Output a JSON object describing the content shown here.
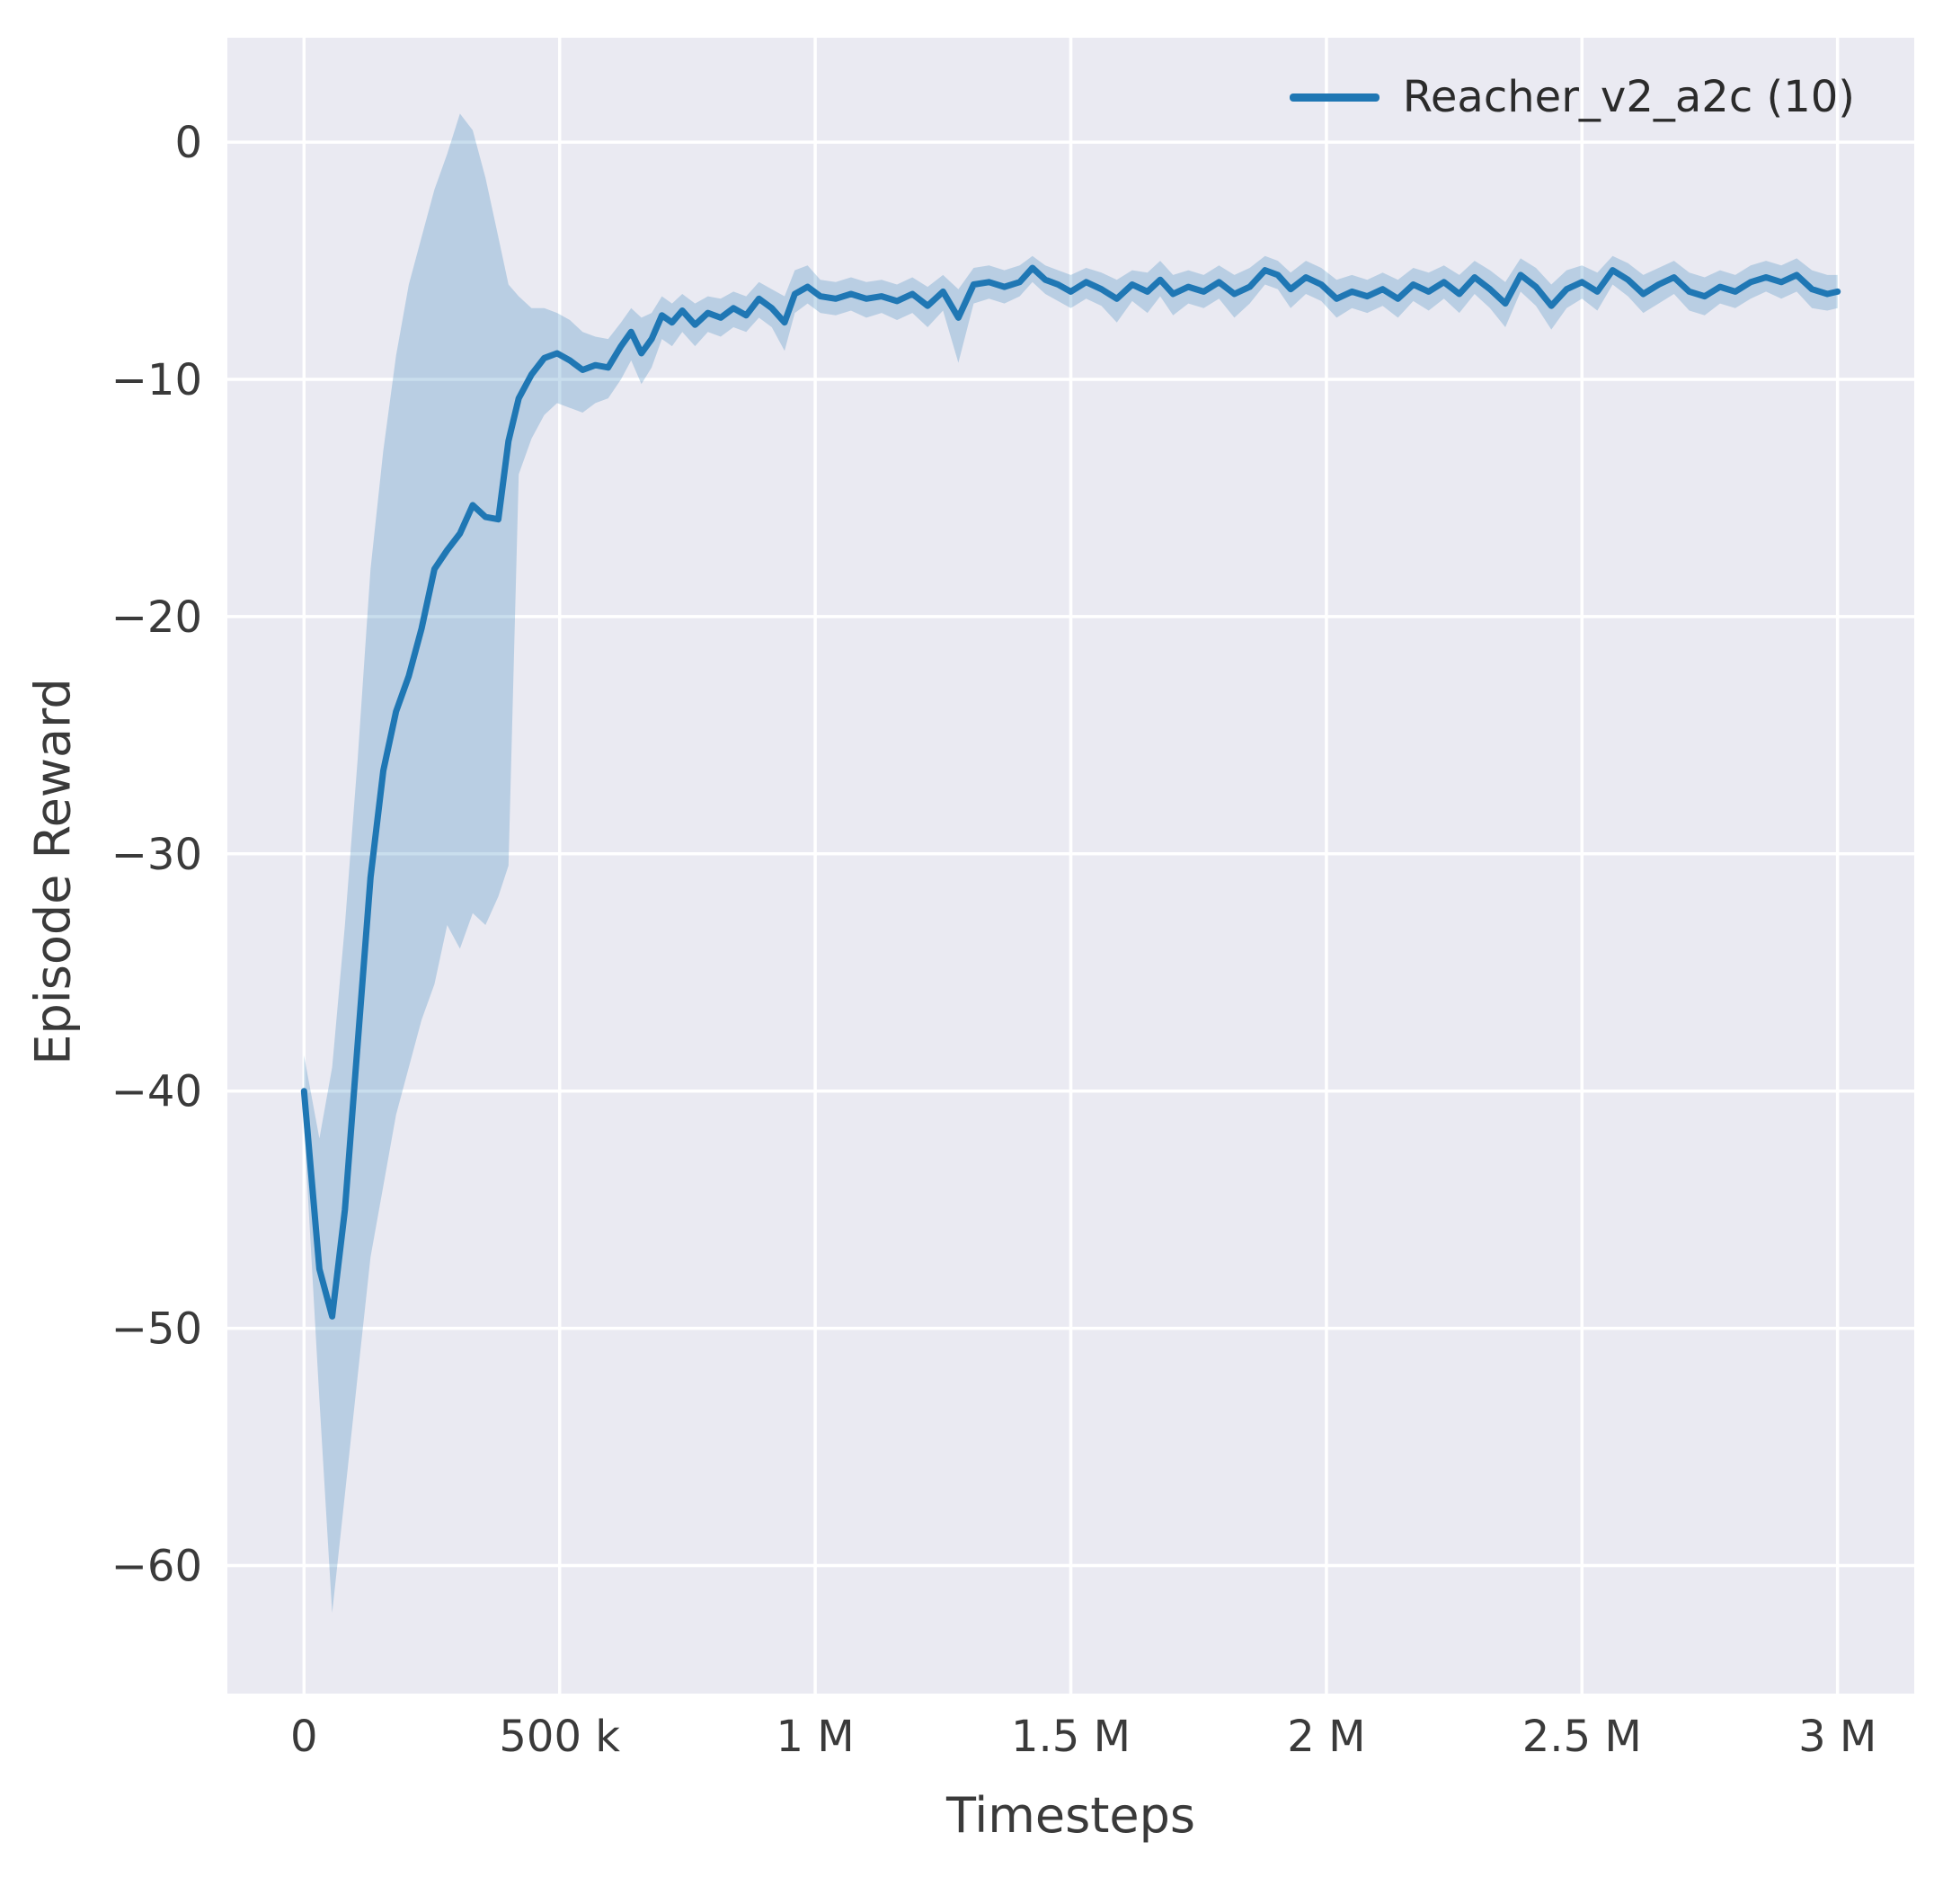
{
  "figure": {
    "plot_background": "#eaeaf2",
    "grid_color": "#ffffff",
    "tick_color": "#3a3a3a"
  },
  "chart_data": {
    "type": "line",
    "title": "",
    "xlabel": "Timesteps",
    "ylabel": "Episode Reward",
    "xlim": [
      -150000,
      3150000
    ],
    "ylim": [
      -65.4,
      4.4
    ],
    "grid": true,
    "legend_position": "top-right",
    "x_ticks": [
      {
        "value": 0,
        "label": "0"
      },
      {
        "value": 500000,
        "label": "500 k"
      },
      {
        "value": 1000000,
        "label": "1 M"
      },
      {
        "value": 1500000,
        "label": "1.5 M"
      },
      {
        "value": 2000000,
        "label": "2 M"
      },
      {
        "value": 2500000,
        "label": "2.5 M"
      },
      {
        "value": 3000000,
        "label": "3 M"
      }
    ],
    "y_ticks": [
      {
        "value": 0,
        "label": "0"
      },
      {
        "value": -10,
        "label": "−10"
      },
      {
        "value": -20,
        "label": "−20"
      },
      {
        "value": -30,
        "label": "−30"
      },
      {
        "value": -40,
        "label": "−40"
      },
      {
        "value": -50,
        "label": "−50"
      },
      {
        "value": -60,
        "label": "−60"
      }
    ],
    "series": [
      {
        "name": "Reacher_v2_a2c (10)",
        "color": "#1f77b4",
        "band_color": "#1f77b4",
        "band_opacity": 0.24,
        "line_width": 7,
        "x": [
          0,
          30000,
          55000,
          80000,
          105000,
          130000,
          155000,
          180000,
          205000,
          230000,
          255000,
          280000,
          305000,
          330000,
          355000,
          380000,
          400000,
          420000,
          445000,
          470000,
          495000,
          520000,
          545000,
          570000,
          595000,
          620000,
          640000,
          660000,
          680000,
          700000,
          720000,
          740000,
          765000,
          790000,
          815000,
          840000,
          865000,
          890000,
          915000,
          940000,
          960000,
          985000,
          1010000,
          1040000,
          1070000,
          1100000,
          1130000,
          1160000,
          1190000,
          1220000,
          1250000,
          1280000,
          1310000,
          1340000,
          1370000,
          1400000,
          1425000,
          1450000,
          1475000,
          1500000,
          1530000,
          1560000,
          1590000,
          1620000,
          1650000,
          1675000,
          1700000,
          1730000,
          1760000,
          1790000,
          1820000,
          1850000,
          1880000,
          1905000,
          1930000,
          1960000,
          1990000,
          2020000,
          2050000,
          2080000,
          2110000,
          2140000,
          2170000,
          2200000,
          2230000,
          2260000,
          2290000,
          2320000,
          2350000,
          2380000,
          2410000,
          2440000,
          2470000,
          2500000,
          2530000,
          2560000,
          2590000,
          2620000,
          2650000,
          2680000,
          2710000,
          2740000,
          2770000,
          2800000,
          2830000,
          2860000,
          2890000,
          2920000,
          2950000,
          2980000,
          3000000
        ],
        "mean": [
          -40,
          -47.5,
          -49.5,
          -45,
          -38,
          -31,
          -26.5,
          -24,
          -22.5,
          -20.5,
          -18,
          -17.2,
          -16.5,
          -15.3,
          -15.8,
          -15.9,
          -12.6,
          -10.8,
          -9.8,
          -9.1,
          -8.9,
          -9.2,
          -9.6,
          -9.4,
          -9.5,
          -8.6,
          -8.0,
          -8.9,
          -8.3,
          -7.3,
          -7.6,
          -7.1,
          -7.7,
          -7.2,
          -7.4,
          -7.0,
          -7.3,
          -6.6,
          -7.0,
          -7.6,
          -6.4,
          -6.1,
          -6.5,
          -6.6,
          -6.4,
          -6.6,
          -6.5,
          -6.7,
          -6.4,
          -6.9,
          -6.3,
          -7.4,
          -6.0,
          -5.9,
          -6.1,
          -5.9,
          -5.3,
          -5.8,
          -6.0,
          -6.3,
          -5.9,
          -6.2,
          -6.6,
          -6.0,
          -6.3,
          -5.8,
          -6.4,
          -6.1,
          -6.3,
          -5.9,
          -6.4,
          -6.1,
          -5.4,
          -5.6,
          -6.2,
          -5.7,
          -6.0,
          -6.6,
          -6.3,
          -6.5,
          -6.2,
          -6.6,
          -6.0,
          -6.3,
          -5.9,
          -6.4,
          -5.7,
          -6.2,
          -6.8,
          -5.6,
          -6.1,
          -6.9,
          -6.2,
          -5.9,
          -6.3,
          -5.4,
          -5.8,
          -6.4,
          -6.0,
          -5.7,
          -6.3,
          -6.5,
          -6.1,
          -6.3,
          -5.9,
          -5.7,
          -5.9,
          -5.6,
          -6.2,
          -6.4,
          -6.3
        ],
        "lower": [
          -41.5,
          -53,
          -62,
          -57,
          -52,
          -47,
          -44,
          -41,
          -39,
          -37,
          -35.5,
          -33,
          -34,
          -32.5,
          -33,
          -31.8,
          -30.5,
          -14,
          -12.5,
          -11.5,
          -11,
          -11.2,
          -11.4,
          -11,
          -10.8,
          -10,
          -9.2,
          -10.2,
          -9.5,
          -8.3,
          -8.6,
          -8.0,
          -8.6,
          -8.0,
          -8.2,
          -7.8,
          -8.0,
          -7.4,
          -7.8,
          -8.8,
          -7.2,
          -6.8,
          -7.2,
          -7.3,
          -7.1,
          -7.4,
          -7.2,
          -7.5,
          -7.2,
          -7.8,
          -7.1,
          -9.3,
          -6.8,
          -6.6,
          -6.8,
          -6.5,
          -5.9,
          -6.4,
          -6.7,
          -7.0,
          -6.6,
          -6.9,
          -7.6,
          -6.7,
          -7.2,
          -6.5,
          -7.3,
          -6.8,
          -7.0,
          -6.6,
          -7.4,
          -6.8,
          -6.0,
          -6.2,
          -7.0,
          -6.4,
          -6.7,
          -7.4,
          -7.0,
          -7.2,
          -6.9,
          -7.4,
          -6.7,
          -7.1,
          -6.6,
          -7.2,
          -6.4,
          -7.0,
          -7.8,
          -6.3,
          -6.9,
          -7.9,
          -7.0,
          -6.6,
          -7.1,
          -6.0,
          -6.5,
          -7.2,
          -6.8,
          -6.4,
          -7.1,
          -7.3,
          -6.8,
          -7.0,
          -6.6,
          -6.3,
          -6.6,
          -6.3,
          -7.0,
          -7.1,
          -7.0
        ],
        "upper": [
          -38.5,
          -42,
          -39,
          -33,
          -26,
          -18,
          -13,
          -9,
          -6,
          -4,
          -2,
          -0.5,
          1.2,
          0.5,
          -1.5,
          -4,
          -6,
          -6.5,
          -7,
          -7,
          -7.2,
          -7.5,
          -8,
          -8.2,
          -8.3,
          -7.6,
          -7.0,
          -7.4,
          -7.2,
          -6.5,
          -6.8,
          -6.4,
          -6.8,
          -6.5,
          -6.6,
          -6.3,
          -6.5,
          -5.9,
          -6.2,
          -6.5,
          -5.4,
          -5.2,
          -5.8,
          -5.9,
          -5.7,
          -5.9,
          -5.8,
          -6.0,
          -5.7,
          -6.1,
          -5.6,
          -6.2,
          -5.3,
          -5.2,
          -5.4,
          -5.2,
          -4.8,
          -5.2,
          -5.4,
          -5.6,
          -5.3,
          -5.5,
          -5.8,
          -5.4,
          -5.5,
          -5.0,
          -5.6,
          -5.4,
          -5.6,
          -5.2,
          -5.6,
          -5.3,
          -4.8,
          -5.0,
          -5.5,
          -5.0,
          -5.3,
          -5.8,
          -5.6,
          -5.8,
          -5.5,
          -5.8,
          -5.3,
          -5.5,
          -5.2,
          -5.6,
          -5.0,
          -5.4,
          -5.9,
          -4.9,
          -5.3,
          -6.0,
          -5.4,
          -5.2,
          -5.5,
          -4.8,
          -5.1,
          -5.6,
          -5.3,
          -5.0,
          -5.5,
          -5.7,
          -5.4,
          -5.6,
          -5.2,
          -5.0,
          -5.2,
          -4.9,
          -5.4,
          -5.6,
          -5.6
        ]
      }
    ]
  }
}
